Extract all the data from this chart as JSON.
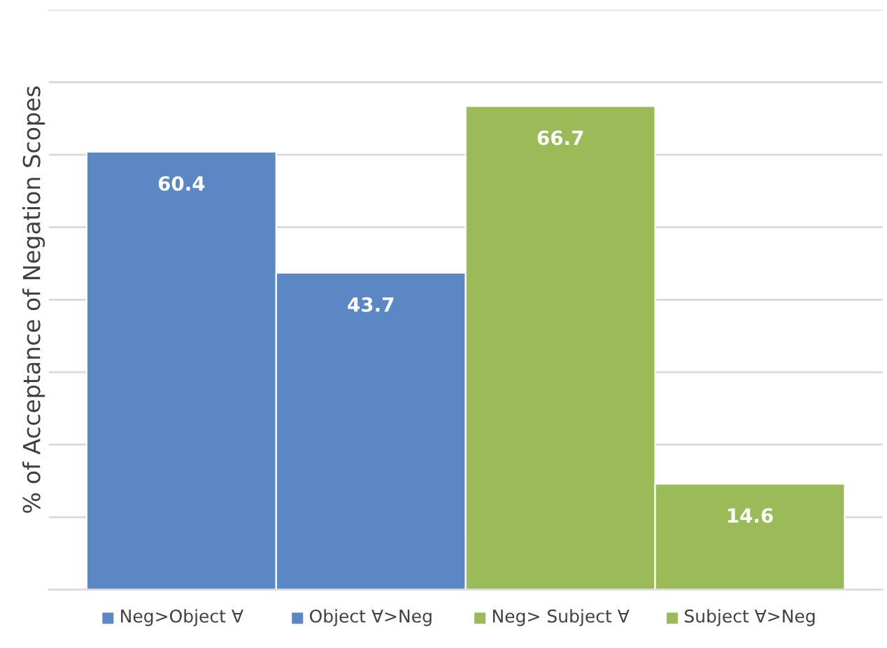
{
  "chart_data": {
    "type": "bar",
    "ylabel": "% of Acceptance of Negation Scopes",
    "categories": [
      "Neg>Object ∀",
      "Object ∀>Neg",
      "Neg> Subject ∀",
      "Subject ∀>Neg"
    ],
    "values": [
      60.4,
      43.7,
      66.7,
      14.6
    ],
    "colors": [
      "#5b87c5",
      "#5b87c5",
      "#9bbb59",
      "#9bbb59"
    ],
    "ylim": [
      0,
      80
    ],
    "yticks": [
      {
        "value": 0,
        "label": null
      },
      {
        "value": 10,
        "label": null
      },
      {
        "value": 20,
        "label": null
      },
      {
        "value": 30,
        "label": null
      },
      {
        "value": 40,
        "label": null
      },
      {
        "value": 50,
        "label": null
      },
      {
        "value": 60,
        "label": null
      },
      {
        "value": 70,
        "label": null
      },
      {
        "value": 80,
        "label": null
      }
    ],
    "tick_labels": "x",
    "grid": "y",
    "data_labels": true
  }
}
